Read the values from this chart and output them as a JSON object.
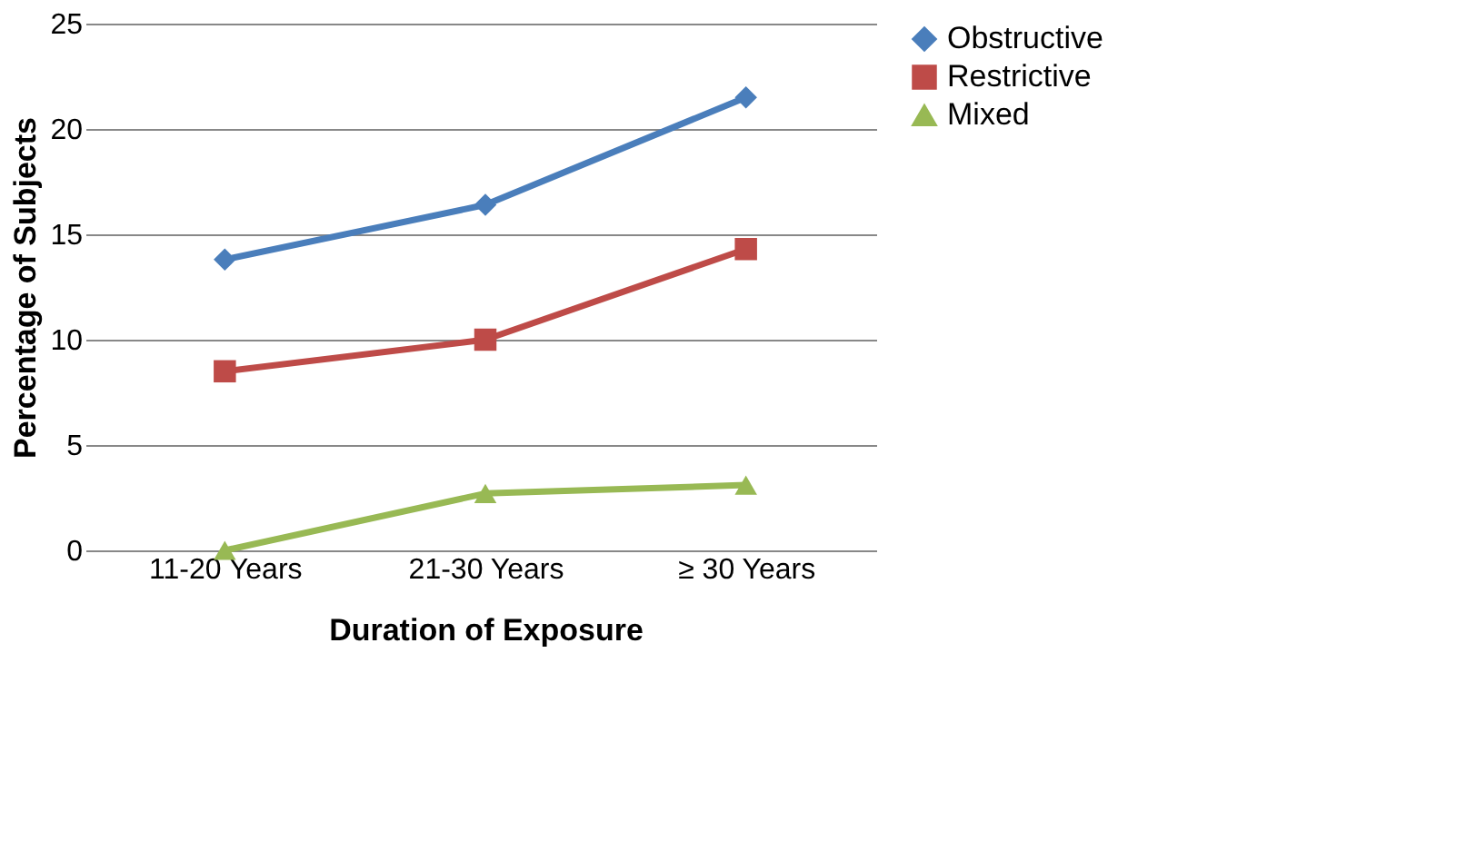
{
  "chart_data": {
    "type": "line",
    "xlabel": "Duration of Exposure",
    "ylabel": "Percentage  of Subjects",
    "categories": [
      "11-20 Years",
      "21-30 Years",
      "≥ 30 Years"
    ],
    "series": [
      {
        "name": "Obstructive",
        "color": "#4a7ebb",
        "marker": "diamond",
        "values": [
          13.8,
          16.4,
          21.5
        ]
      },
      {
        "name": "Restrictive",
        "color": "#be4b48",
        "marker": "square",
        "values": [
          8.5,
          10.0,
          14.3
        ]
      },
      {
        "name": "Mixed",
        "color": "#98b954",
        "marker": "triangle",
        "values": [
          0,
          2.7,
          3.1
        ]
      }
    ],
    "ylim": [
      0,
      25
    ],
    "yticks": [
      0,
      5,
      10,
      15,
      20,
      25
    ],
    "grid": "y",
    "legend": "right",
    "line_style": "solid"
  }
}
